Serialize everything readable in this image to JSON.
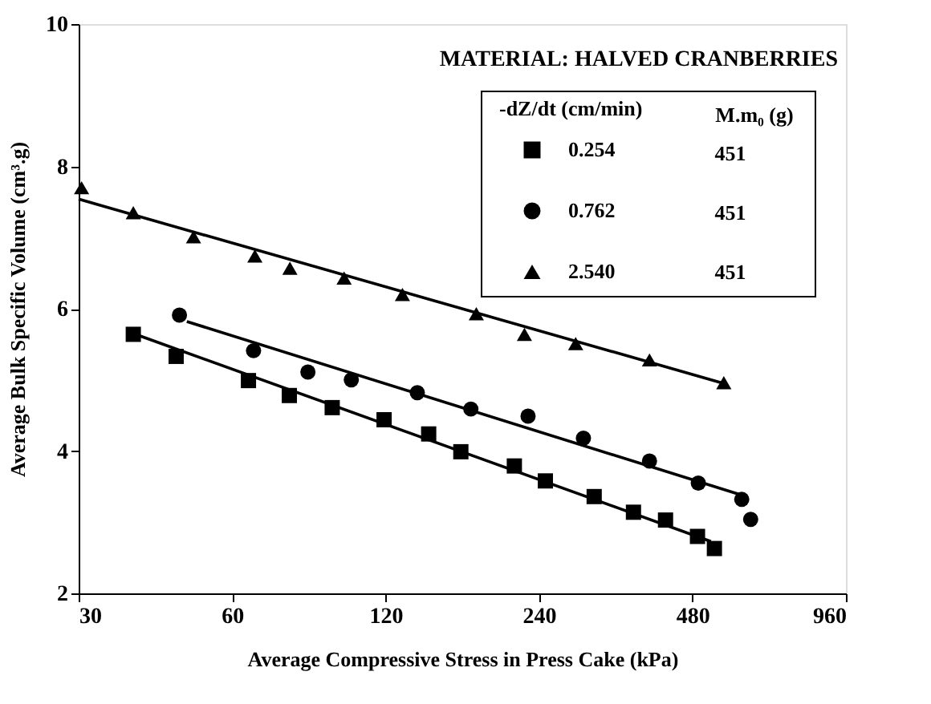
{
  "chart_data": {
    "type": "scatter",
    "xlabel": "Average Compressive Stress in Press Cake (kPa)",
    "ylabel": "Average Bulk Specific Volume (cm³.g)",
    "legend_title": "-dZ/dt (cm/min)",
    "legend": "top right",
    "log": "x",
    "grid": false,
    "xlim": [
      30,
      960
    ],
    "xticks": [
      30,
      60,
      120,
      240,
      480,
      960
    ],
    "ylim": [
      2,
      10
    ],
    "yticks": [
      2,
      4,
      6,
      8,
      10
    ],
    "annotations": [
      "MATERIAL: HALVED CRANBERRIES",
      "M.m₀ (g)",
      "451",
      "451",
      "451"
    ],
    "series": [
      {
        "name": "0.254",
        "marker": "square",
        "color": "#000000",
        "x": [
          38.4,
          46.6,
          64.6,
          77.7,
          94.3,
          119.2,
          145.8,
          168.6,
          214.7,
          247,
          307.9,
          367.7,
          425,
          491,
          530
        ],
        "values": [
          5.64,
          5.33,
          4.99,
          4.78,
          4.61,
          4.44,
          4.24,
          3.99,
          3.79,
          3.58,
          3.36,
          3.14,
          3.03,
          2.8,
          2.63
        ]
      },
      {
        "name": "0.762",
        "marker": "circle",
        "color": "#000000",
        "x": [
          47.3,
          66.1,
          84.5,
          102.8,
          138.5,
          176.4,
          228.4,
          293.3,
          395.3,
          492.8,
          599.7,
          624.3
        ],
        "values": [
          5.91,
          5.41,
          5.11,
          5.0,
          4.82,
          4.59,
          4.49,
          4.18,
          3.86,
          3.55,
          3.32,
          3.04
        ]
      },
      {
        "name": "2.540",
        "marker": "triangle",
        "color": "#000000",
        "x": [
          30.4,
          38.4,
          50.4,
          66.5,
          77.9,
          99.5,
          129.5,
          180.8,
          224.7,
          283.2,
          395.3,
          553
        ],
        "values": [
          7.7,
          7.35,
          7.01,
          6.74,
          6.57,
          6.43,
          6.2,
          5.93,
          5.64,
          5.51,
          5.28,
          4.96
        ]
      },
      {
        "type": "line",
        "line_style": "solid",
        "color": "#000000",
        "x": [
          39.5,
          521.6
        ],
        "values": [
          5.62,
          2.73
        ]
      },
      {
        "type": "line",
        "line_style": "solid",
        "color": "#000000",
        "x": [
          48.9,
          599.7
        ],
        "values": [
          5.82,
          3.38
        ]
      },
      {
        "type": "line",
        "line_style": "solid",
        "color": "#000000",
        "x": [
          30,
          553
        ],
        "values": [
          7.54,
          4.95
        ]
      }
    ]
  }
}
